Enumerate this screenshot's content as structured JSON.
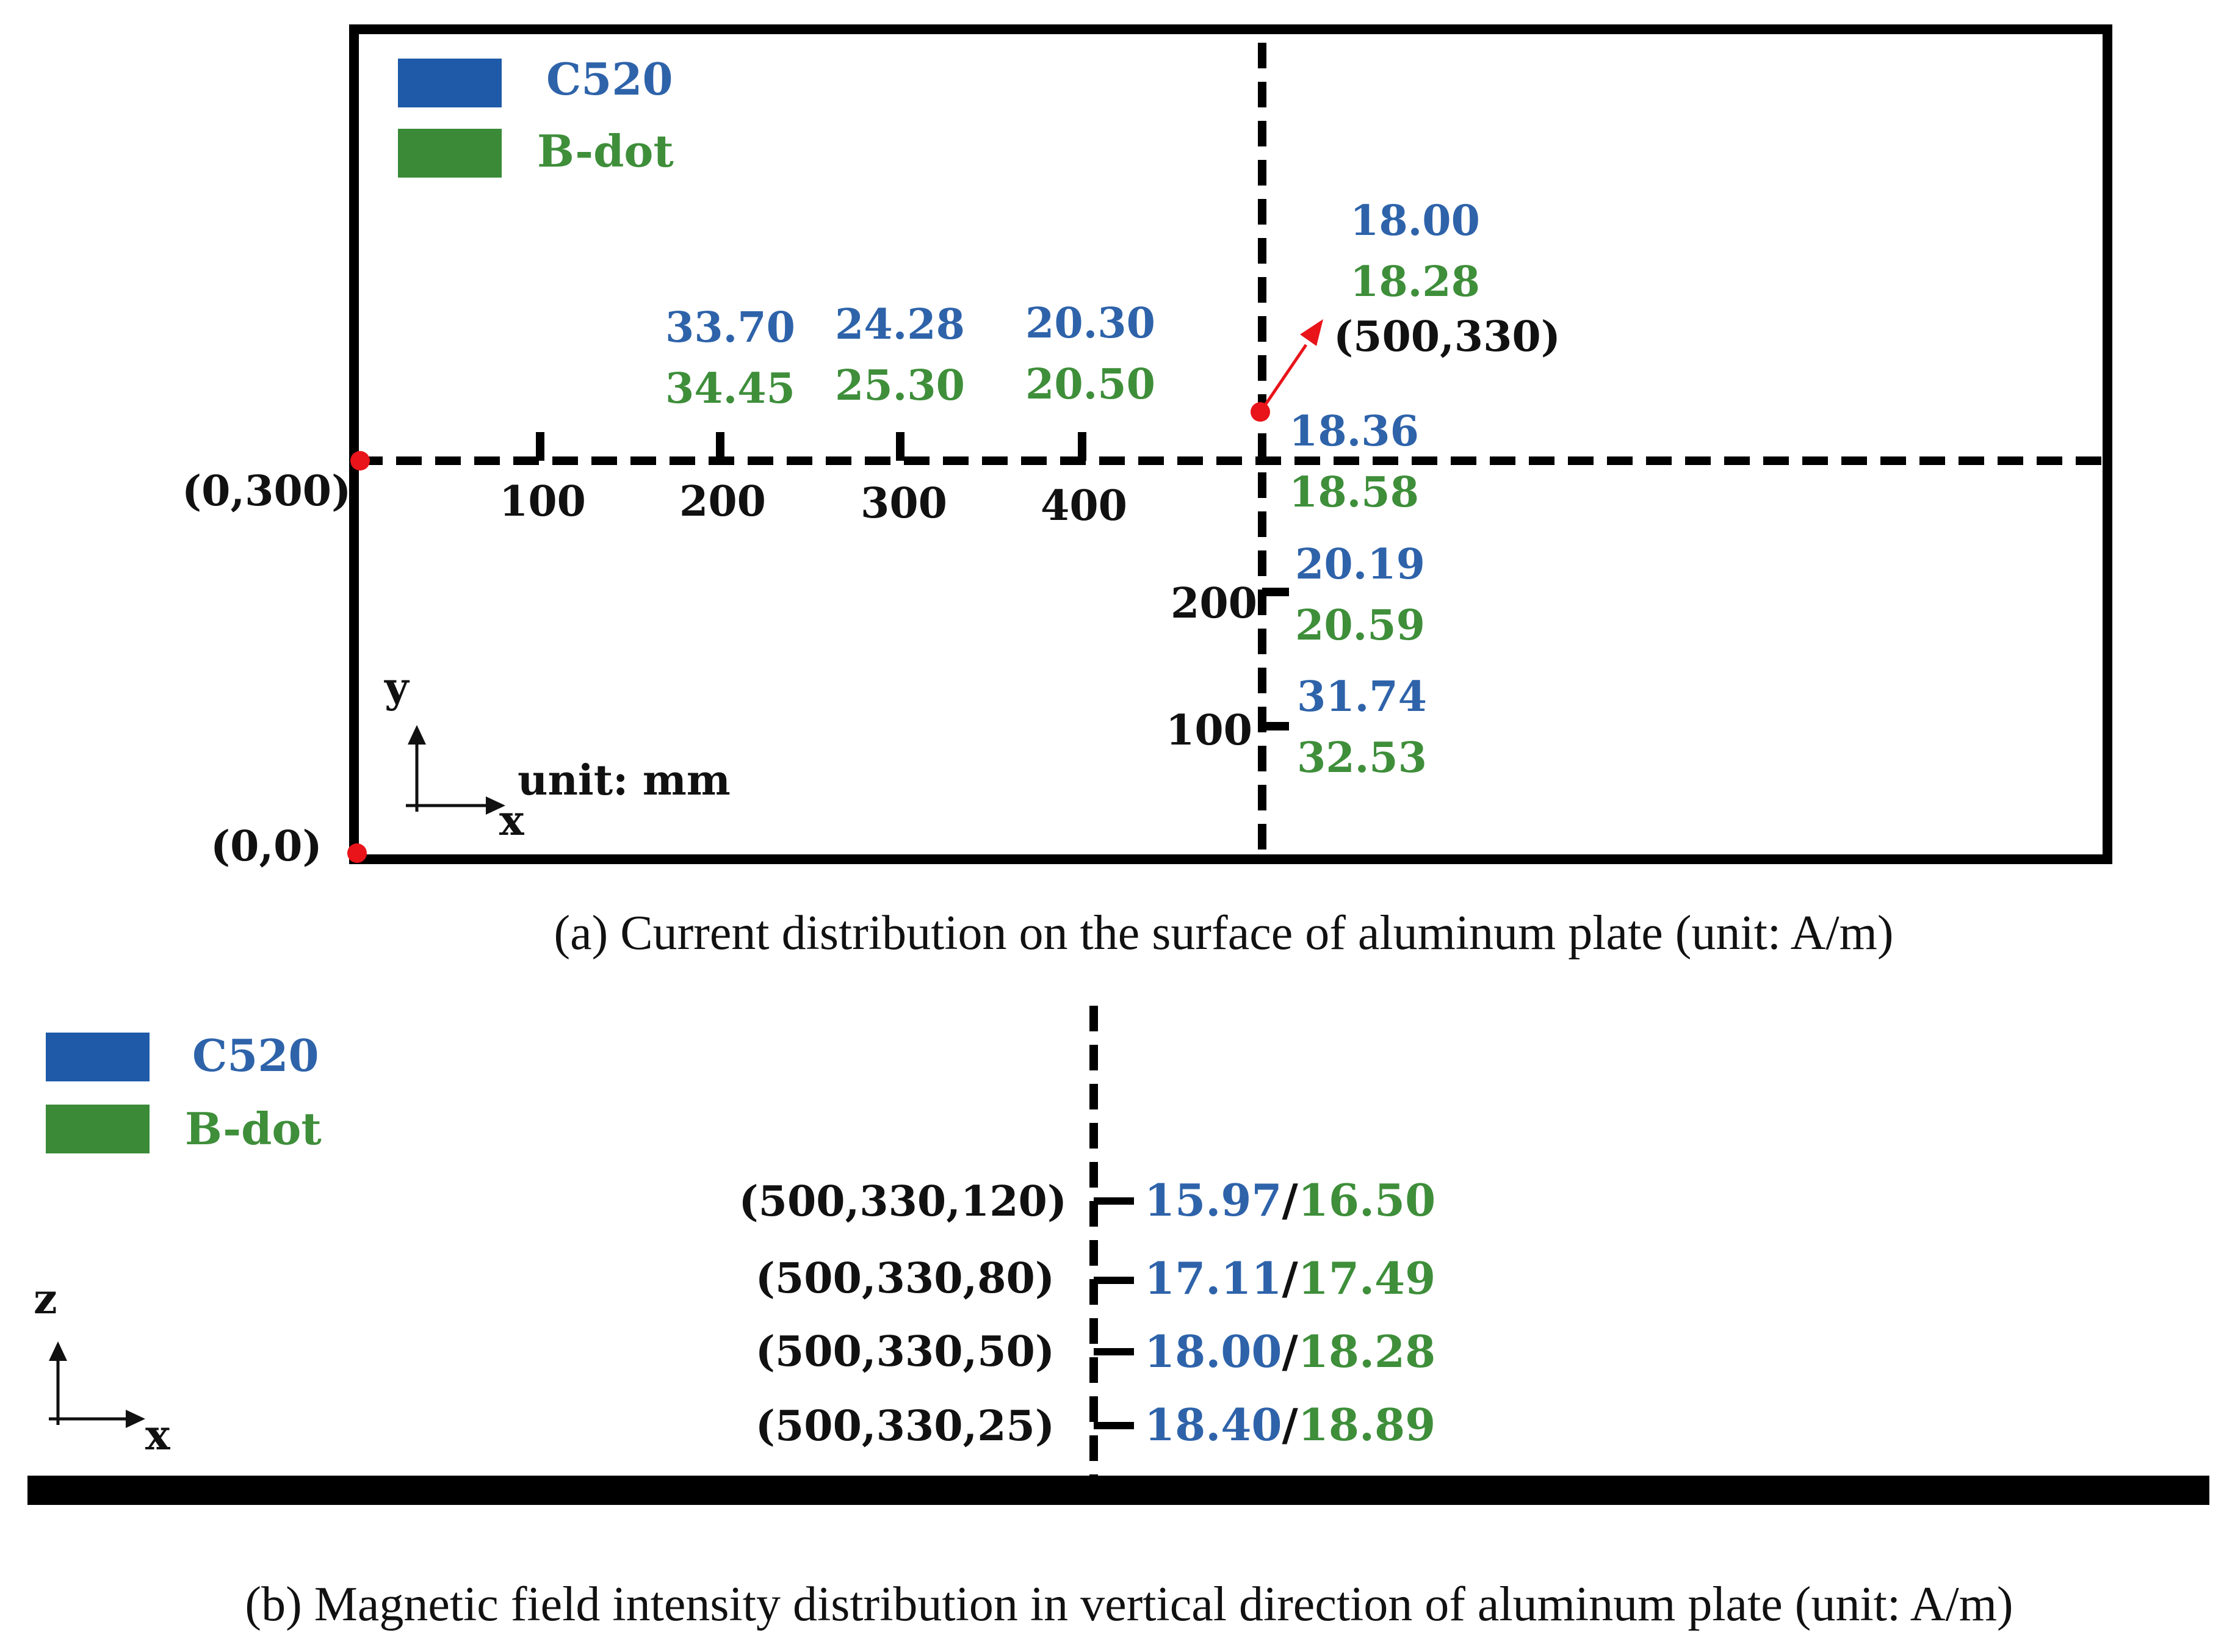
{
  "colors": {
    "c520": "#2E63AA",
    "bdot": "#3E8E3A",
    "text": "#111111",
    "marker": "#E8141A"
  },
  "panel_a": {
    "legend": {
      "c520": "C520",
      "bdot": "B-dot"
    },
    "origin_label": "(0,0)",
    "y300_label": "(0,300)",
    "axis": {
      "y": "y",
      "x": "x",
      "unit": "unit: mm"
    },
    "x_ticks": [
      "100",
      "200",
      "300",
      "400"
    ],
    "y_ticks": [
      "200",
      "100"
    ],
    "x_values": [
      {
        "c520": "33.70",
        "bdot": "34.45"
      },
      {
        "c520": "24.28",
        "bdot": "25.30"
      },
      {
        "c520": "20.30",
        "bdot": "20.50"
      }
    ],
    "point_label": "(500,330)",
    "point_values": {
      "c520": "18.00",
      "bdot": "18.28"
    },
    "y_values": [
      {
        "c520": "18.36",
        "bdot": "18.58"
      },
      {
        "c520": "20.19",
        "bdot": "20.59"
      },
      {
        "c520": "31.74",
        "bdot": "32.53"
      }
    ],
    "caption": "(a) Current distribution on the surface of aluminum plate (unit: A/m)"
  },
  "panel_b": {
    "legend": {
      "c520": "C520",
      "bdot": "B-dot"
    },
    "axis": {
      "z": "z",
      "x": "x"
    },
    "points": [
      {
        "label": "(500,330,120)",
        "c520": "15.97",
        "sep": "/",
        "bdot": "16.50"
      },
      {
        "label": "(500,330,80)",
        "c520": "17.11",
        "sep": "/",
        "bdot": "17.49"
      },
      {
        "label": "(500,330,50)",
        "c520": "18.00",
        "sep": "/",
        "bdot": "18.28"
      },
      {
        "label": "(500,330,25)",
        "c520": "18.40",
        "sep": "/",
        "bdot": "18.89"
      }
    ],
    "caption": "(b) Magnetic field intensity distribution in vertical direction of aluminum plate (unit: A/m)"
  }
}
